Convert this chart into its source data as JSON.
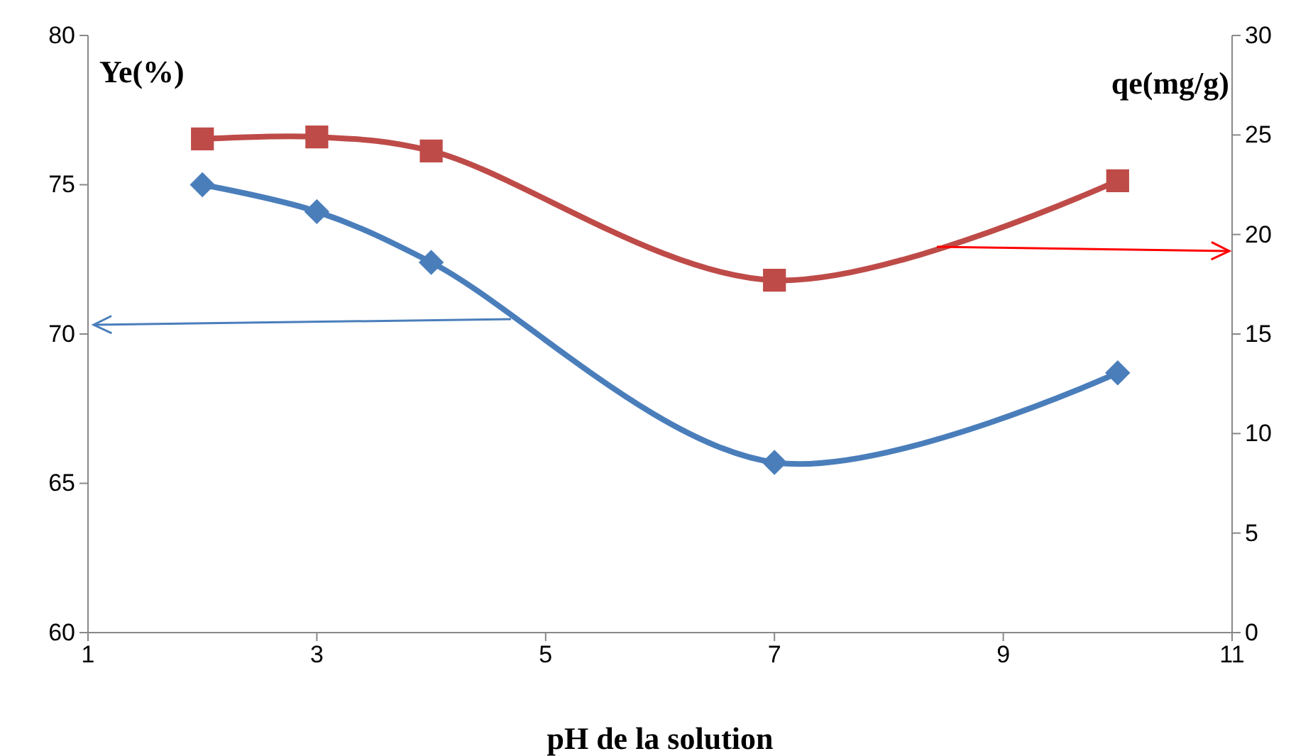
{
  "chart_data": {
    "type": "line",
    "xlabel": "pH de la solution",
    "ylabel": "Ye(%)",
    "y2label": "qe(mg/g)",
    "xlim": [
      1,
      11
    ],
    "xticks": [
      1,
      3,
      5,
      7,
      9,
      11
    ],
    "ylim": [
      60,
      80
    ],
    "yticks": [
      60,
      65,
      70,
      75,
      80
    ],
    "y2lim": [
      0,
      30
    ],
    "y2ticks": [
      0,
      5,
      10,
      15,
      20,
      25,
      30
    ],
    "x": [
      2,
      3,
      4,
      7,
      10
    ],
    "series": [
      {
        "color": "#4a7ebb",
        "values": [
          75.0,
          74.1,
          72.4,
          65.7,
          68.7
        ],
        "marker": "diamond"
      },
      {
        "color": "#be4b48",
        "values": [
          24.8,
          24.9,
          24.2,
          17.7,
          22.7
        ],
        "marker": "square",
        "axis": "y2"
      }
    ]
  }
}
